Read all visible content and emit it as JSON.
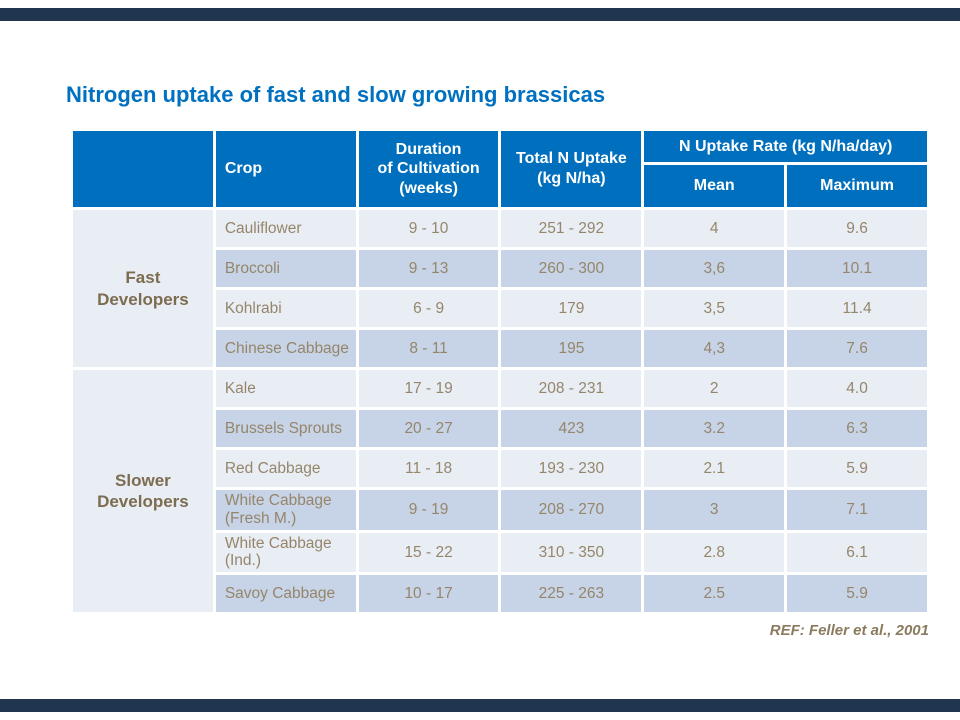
{
  "slide": {
    "title": "Nitrogen uptake of fast and slow growing brassicas",
    "reference": "REF: Feller et al., 2001"
  },
  "colors": {
    "title_blue": "#0070C0",
    "header_blue": "#0070BE",
    "band_light": "#E9EDF4",
    "band_blue": "#C7D3E6",
    "text_brown": "#95866B",
    "group_label_brown": "#7C6C50",
    "accent_bar_navy": "#1F3550"
  },
  "table": {
    "headers": {
      "crop": "Crop",
      "duration_line1": "Duration",
      "duration_line2": "of Cultivation (weeks)",
      "total_line1": "Total N Uptake",
      "total_line2": "(kg N/ha)",
      "rate": "N Uptake Rate (kg N/ha/day)",
      "mean": "Mean",
      "maximum": "Maximum"
    },
    "groups": [
      {
        "label": "Fast Developers",
        "rows": [
          {
            "crop": "Cauliflower",
            "duration": "9 - 10",
            "total": "251 - 292",
            "mean": "4",
            "maximum": "9.6"
          },
          {
            "crop": "Broccoli",
            "duration": "9 - 13",
            "total": "260 - 300",
            "mean": "3,6",
            "maximum": "10.1"
          },
          {
            "crop": "Kohlrabi",
            "duration": "6 - 9",
            "total": "179",
            "mean": "3,5",
            "maximum": "11.4"
          },
          {
            "crop": "Chinese Cabbage",
            "duration": "8 - 11",
            "total": "195",
            "mean": "4,3",
            "maximum": "7.6"
          }
        ]
      },
      {
        "label": "Slower Developers",
        "rows": [
          {
            "crop": "Kale",
            "duration": "17 - 19",
            "total": "208 - 231",
            "mean": "2",
            "maximum": "4.0"
          },
          {
            "crop": "Brussels Sprouts",
            "duration": "20 - 27",
            "total": "423",
            "mean": "3.2",
            "maximum": "6.3"
          },
          {
            "crop": "Red Cabbage",
            "duration": "11 - 18",
            "total": "193 - 230",
            "mean": "2.1",
            "maximum": "5.9"
          },
          {
            "crop": "White Cabbage (Fresh M.)",
            "duration": "9 - 19",
            "total": "208 - 270",
            "mean": "3",
            "maximum": "7.1"
          },
          {
            "crop": "White Cabbage (Ind.)",
            "duration": "15 - 22",
            "total": "310 - 350",
            "mean": "2.8",
            "maximum": "6.1"
          },
          {
            "crop": "Savoy Cabbage",
            "duration": "10 - 17",
            "total": "225 - 263",
            "mean": "2.5",
            "maximum": "5.9"
          }
        ]
      }
    ]
  }
}
